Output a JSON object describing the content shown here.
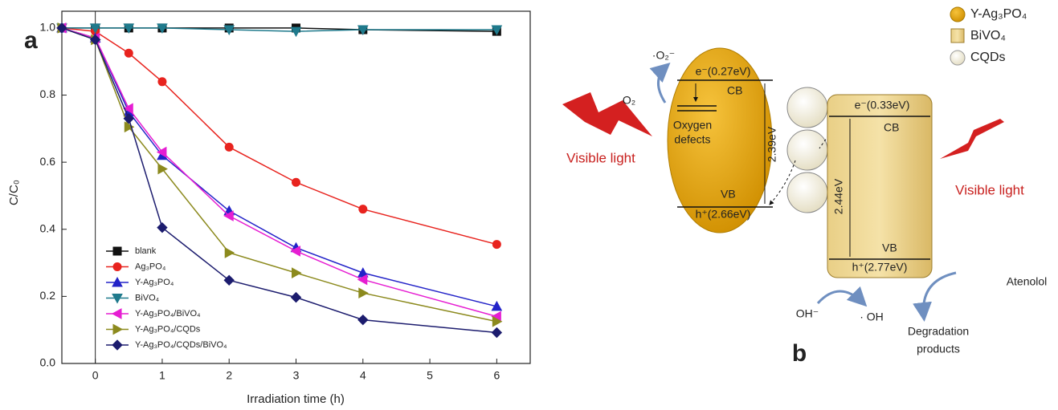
{
  "chart_data": {
    "type": "line",
    "panel_label": "a",
    "x_label": "Irradiation time (h)",
    "y_label": "C/C₀",
    "x": [
      -0.5,
      0,
      0.5,
      1,
      2,
      3,
      4,
      6
    ],
    "series": [
      {
        "name": "blank",
        "color": "#111111",
        "marker": "square",
        "values": [
          1.0,
          1.0,
          1.0,
          1.0,
          1.0,
          1.0,
          0.995,
          0.99
        ]
      },
      {
        "name": "Ag₃PO₄",
        "color": "#e8231e",
        "marker": "circle",
        "values": [
          1.0,
          0.99,
          0.925,
          0.84,
          0.645,
          0.54,
          0.46,
          0.355
        ]
      },
      {
        "name": "Y-Ag₃PO₄",
        "color": "#2323c8",
        "marker": "triangle-up",
        "values": [
          1.0,
          0.97,
          0.75,
          0.62,
          0.455,
          0.345,
          0.27,
          0.17
        ]
      },
      {
        "name": "BiVO₄",
        "color": "#1f7a8c",
        "marker": "triangle-down",
        "values": [
          1.0,
          1.0,
          1.0,
          1.0,
          0.995,
          0.99,
          0.995,
          0.995
        ]
      },
      {
        "name": "Y-Ag₃PO₄/BiVO₄",
        "color": "#e61ed2",
        "marker": "triangle-left",
        "values": [
          1.0,
          0.97,
          0.76,
          0.63,
          0.44,
          0.335,
          0.25,
          0.14
        ]
      },
      {
        "name": "Y-Ag₃PO₄/CQDs",
        "color": "#8c8a1e",
        "marker": "triangle-right",
        "values": [
          1.0,
          0.965,
          0.705,
          0.58,
          0.33,
          0.27,
          0.21,
          0.125
        ]
      },
      {
        "name": "Y-Ag₃PO₄/CQDs/BiVO₄",
        "color": "#1c1c6e",
        "marker": "diamond",
        "values": [
          1.0,
          0.965,
          0.73,
          0.405,
          0.248,
          0.197,
          0.13,
          0.092
        ]
      }
    ],
    "xlim": [
      -0.5,
      6.5
    ],
    "ylim": [
      0,
      1.05
    ],
    "xticks": [
      0,
      1,
      2,
      3,
      4,
      5,
      6
    ],
    "yticks": [
      {
        "value": 0,
        "label": "0.0"
      },
      0.2,
      0.4,
      0.6,
      0.8,
      {
        "value": 1,
        "label": "1.0"
      }
    ],
    "vlines": [
      0
    ],
    "legend": "lower left"
  },
  "diagram": {
    "panel_label": "b",
    "legend": [
      "Y-Ag₃PO₄",
      "BiVO₄",
      "CQDs"
    ],
    "visible_light": [
      "Visible light",
      "Visible light"
    ],
    "superoxide": "·O₂⁻",
    "oxygen": "O₂",
    "ag": {
      "cb_electron": "e⁻(0.27eV)",
      "cb": "CB",
      "oxygen_defects": [
        "Oxygen",
        "defects"
      ],
      "gap": "2.39eV",
      "vb": "VB",
      "vb_hole": "h⁺(2.66eV)"
    },
    "bivo": {
      "cb_electron": "e⁻(0.33eV)",
      "cb": "CB",
      "gap": "2.44eV",
      "vb": "VB",
      "vb_hole": "h⁺(2.77eV)"
    },
    "hydroxide": "OH⁻",
    "hydroxyl": "· OH",
    "pollutant": "Atenolol",
    "products": [
      "Degradation",
      "products"
    ]
  }
}
